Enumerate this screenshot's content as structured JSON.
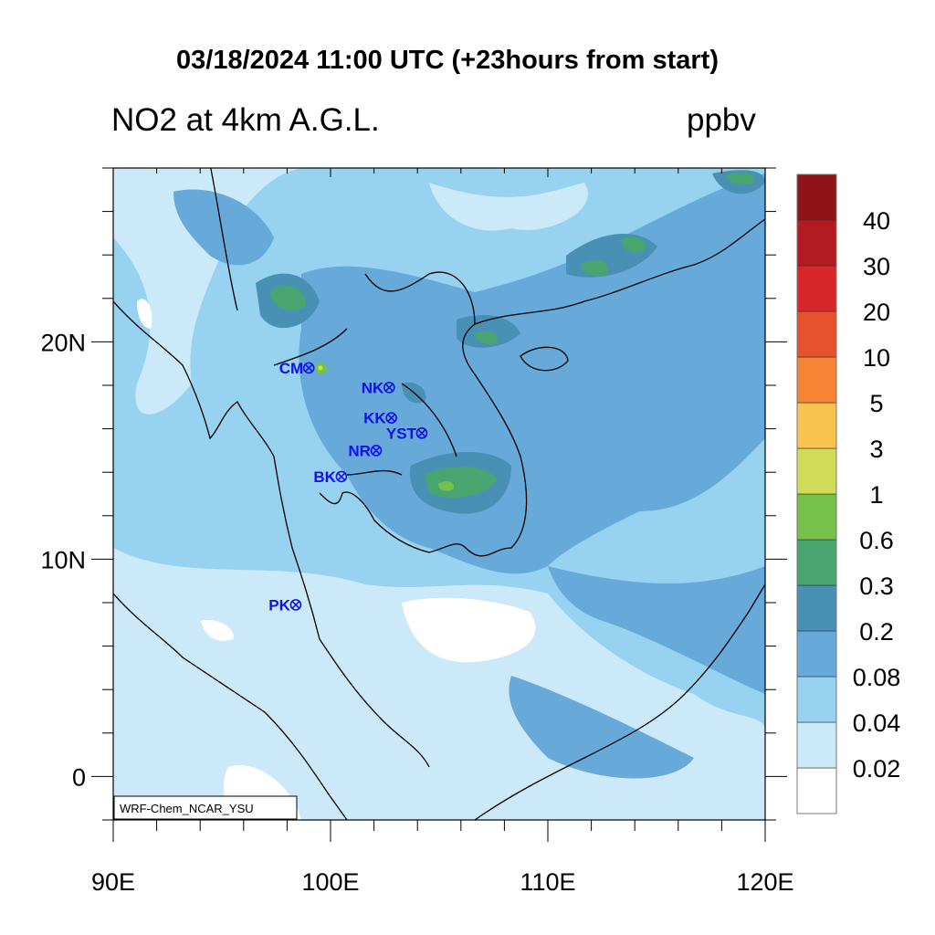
{
  "title": "03/18/2024 11:00 UTC (+23hours from start)",
  "subtitle": "NO2 at 4km A.G.L.",
  "units": "ppbv",
  "watermark": "WRF-Chem_NCAR_YSU",
  "map": {
    "lon_range": [
      90,
      120
    ],
    "lat_range": [
      -2,
      28
    ],
    "lon_ticks": [
      {
        "value": 90,
        "label": "90E"
      },
      {
        "value": 100,
        "label": "100E"
      },
      {
        "value": 110,
        "label": "110E"
      },
      {
        "value": 120,
        "label": "120E"
      }
    ],
    "lat_ticks": [
      {
        "value": 0,
        "label": "0"
      },
      {
        "value": 10,
        "label": "10N"
      },
      {
        "value": 20,
        "label": "20N"
      }
    ],
    "minor_tick_step_deg": 2
  },
  "stations": [
    {
      "name": "CM",
      "lon": 99.0,
      "lat": 18.8
    },
    {
      "name": "NK",
      "lon": 102.7,
      "lat": 17.9
    },
    {
      "name": "KK",
      "lon": 102.8,
      "lat": 16.5
    },
    {
      "name": "YST",
      "lon": 104.2,
      "lat": 15.8
    },
    {
      "name": "NR",
      "lon": 102.1,
      "lat": 15.0
    },
    {
      "name": "BK",
      "lon": 100.5,
      "lat": 13.8
    },
    {
      "name": "PK",
      "lon": 98.4,
      "lat": 7.9
    }
  ],
  "colorbar": {
    "levels": [
      "0.02",
      "0.04",
      "0.08",
      "0.2",
      "0.3",
      "0.6",
      "1",
      "3",
      "5",
      "10",
      "20",
      "30",
      "40"
    ],
    "colors": [
      "#ffffff",
      "#cce9f9",
      "#97d2f1",
      "#67a9d9",
      "#4891b5",
      "#49a570",
      "#76c14a",
      "#d0dc59",
      "#f9c34f",
      "#f58435",
      "#e6522b",
      "#d8272a",
      "#b31b22",
      "#8f1419"
    ]
  }
}
